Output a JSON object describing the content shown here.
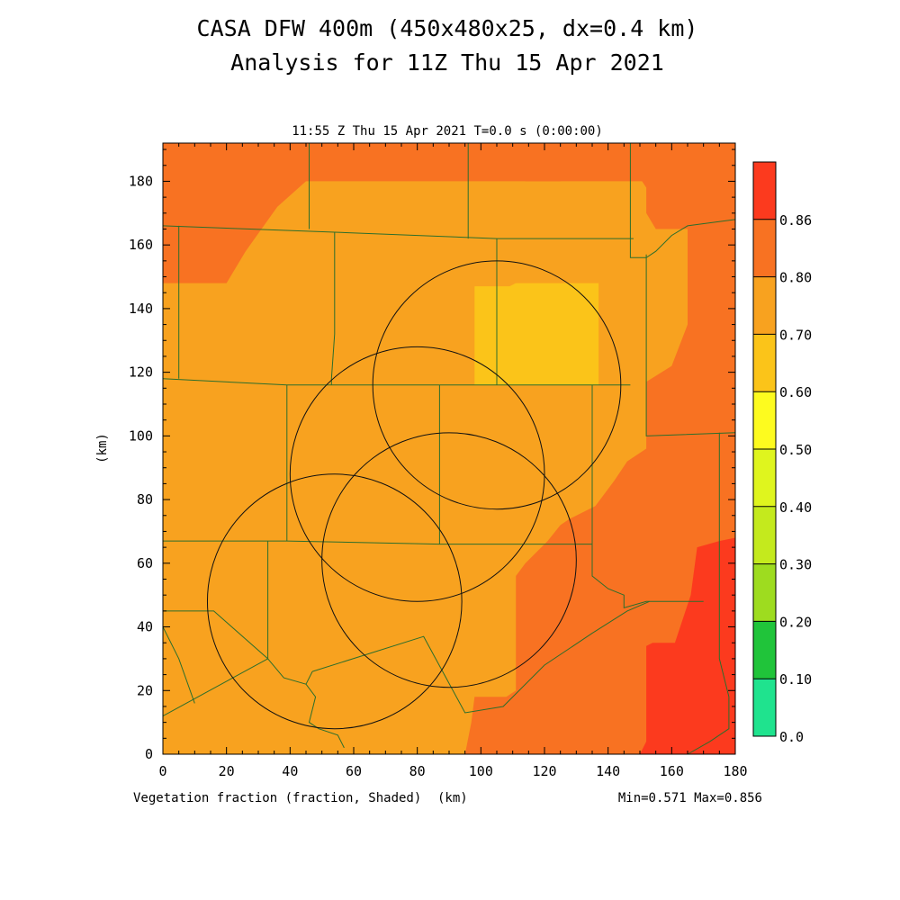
{
  "header": {
    "title_line1": "CASA DFW 400m (450x480x25, dx=0.4 km)",
    "title_line2": "Analysis for 11Z Thu 15 Apr 2021",
    "time_label": "11:55 Z Thu 15 Apr 2021   T=0.0 s (0:00:00)"
  },
  "footer": {
    "field_label": "Vegetation fraction (fraction, Shaded)",
    "x_unit": "(km)",
    "minmax": "Min=0.571 Max=0.856"
  },
  "chart_data": {
    "type": "heatmap",
    "title": "Vegetation fraction (fraction, Shaded)",
    "xlabel": "(km)",
    "ylabel": "(km)",
    "xlim": [
      0,
      180
    ],
    "ylim": [
      0,
      192
    ],
    "x_ticks": [
      "0",
      "20",
      "40",
      "60",
      "80",
      "100",
      "120",
      "140",
      "160",
      "180"
    ],
    "y_ticks": [
      "0",
      "20",
      "40",
      "60",
      "80",
      "100",
      "120",
      "140",
      "160",
      "180"
    ],
    "min": 0.571,
    "max": 0.856,
    "colorbar": {
      "labels": [
        "0.0",
        "0.10",
        "0.20",
        "0.30",
        "0.40",
        "0.50",
        "0.60",
        "0.70",
        "0.80",
        "0.86"
      ],
      "colors": [
        "#1fe38e",
        "#20c43a",
        "#9edc1f",
        "#c4ea1d",
        "#dff51e",
        "#fdfb1f",
        "#fbc419",
        "#f8a21f",
        "#f87222",
        "#fc3a1e"
      ]
    },
    "regions": [
      {
        "level": "0.60-0.70",
        "color": "#f8a21f",
        "polygon": [
          [
            0,
            0
          ],
          [
            180,
            0
          ],
          [
            180,
            192
          ],
          [
            0,
            192
          ]
        ]
      },
      {
        "level": "0.70-0.80",
        "color": "#f87222",
        "polygon": [
          [
            0,
            148
          ],
          [
            20,
            148
          ],
          [
            26,
            158
          ],
          [
            36,
            172
          ],
          [
            45,
            180
          ],
          [
            160,
            180
          ],
          [
            160,
            192
          ],
          [
            0,
            192
          ]
        ]
      },
      {
        "level": "0.70-0.80",
        "color": "#f87222",
        "polygon": [
          [
            112,
            192
          ],
          [
            112,
            182
          ],
          [
            114,
            180
          ],
          [
            125,
            180
          ],
          [
            125,
            192
          ]
        ]
      },
      {
        "level": "0.70-0.80",
        "color": "#f87222",
        "polygon": [
          [
            150,
            192
          ],
          [
            150,
            181
          ],
          [
            152,
            178
          ],
          [
            152,
            170
          ],
          [
            155,
            165
          ],
          [
            165,
            165
          ],
          [
            165,
            135
          ],
          [
            160,
            122
          ],
          [
            152,
            117
          ],
          [
            152,
            96
          ],
          [
            146,
            92
          ],
          [
            142,
            86
          ],
          [
            136,
            78
          ],
          [
            128,
            74
          ],
          [
            125,
            72
          ],
          [
            121,
            67
          ],
          [
            114,
            60
          ],
          [
            111,
            56
          ],
          [
            111,
            20
          ],
          [
            108,
            18
          ],
          [
            98,
            18
          ],
          [
            97,
            10
          ],
          [
            95,
            0
          ],
          [
            180,
            0
          ],
          [
            180,
            192
          ]
        ]
      },
      {
        "level": "0.50-0.60",
        "color": "#fbc419",
        "polygon": [
          [
            98,
            116
          ],
          [
            98,
            147
          ],
          [
            109,
            147
          ],
          [
            111,
            148
          ],
          [
            137,
            148
          ],
          [
            137,
            145
          ],
          [
            137,
            116
          ]
        ]
      },
      {
        "level": "0.80-0.86",
        "color": "#fc3a1e",
        "polygon": [
          [
            150,
            0
          ],
          [
            152,
            4
          ],
          [
            152,
            34
          ],
          [
            154,
            35
          ],
          [
            161,
            35
          ],
          [
            166,
            50
          ],
          [
            168,
            65
          ],
          [
            175,
            67
          ],
          [
            180,
            68
          ],
          [
            180,
            0
          ]
        ]
      }
    ],
    "circles": [
      {
        "cx": 105,
        "cy": 116,
        "r": 39
      },
      {
        "cx": 80,
        "cy": 88,
        "r": 40
      },
      {
        "cx": 90,
        "cy": 61,
        "r": 40
      },
      {
        "cx": 54,
        "cy": 48,
        "r": 40
      }
    ],
    "boundaries": [
      [
        [
          0,
          166
        ],
        [
          54,
          164
        ],
        [
          105,
          162
        ],
        [
          148,
          162
        ]
      ],
      [
        [
          0,
          118
        ],
        [
          39,
          116
        ],
        [
          87,
          116
        ],
        [
          117,
          116
        ],
        [
          147,
          116
        ]
      ],
      [
        [
          0,
          67
        ],
        [
          33,
          67
        ],
        [
          39,
          67
        ],
        [
          87,
          66
        ],
        [
          135,
          66
        ]
      ],
      [
        [
          5,
          166
        ],
        [
          5,
          118
        ]
      ],
      [
        [
          54,
          164
        ],
        [
          54,
          132
        ],
        [
          53,
          118
        ],
        [
          53,
          116
        ]
      ],
      [
        [
          105,
          162
        ],
        [
          105,
          116
        ]
      ],
      [
        [
          39,
          116
        ],
        [
          39,
          67
        ]
      ],
      [
        [
          87,
          116
        ],
        [
          87,
          66
        ]
      ],
      [
        [
          135,
          116
        ],
        [
          135,
          66
        ]
      ],
      [
        [
          46,
          192
        ],
        [
          46,
          165
        ]
      ],
      [
        [
          96,
          192
        ],
        [
          96,
          162
        ]
      ],
      [
        [
          147,
          192
        ],
        [
          147,
          162
        ]
      ],
      [
        [
          147,
          162
        ],
        [
          147,
          156
        ],
        [
          152,
          156
        ],
        [
          155,
          158
        ],
        [
          160,
          163
        ],
        [
          165,
          166
        ],
        [
          180,
          168
        ]
      ],
      [
        [
          152,
          157
        ],
        [
          152,
          100
        ],
        [
          180,
          101
        ]
      ],
      [
        [
          33,
          67
        ],
        [
          33,
          45
        ],
        [
          33,
          30
        ],
        [
          16,
          45
        ],
        [
          0,
          45
        ]
      ],
      [
        [
          0,
          40
        ],
        [
          5,
          30
        ],
        [
          10,
          16
        ]
      ],
      [
        [
          33,
          30
        ],
        [
          38,
          24
        ],
        [
          45,
          22
        ],
        [
          47,
          26
        ]
      ],
      [
        [
          0,
          12
        ],
        [
          33,
          30
        ]
      ],
      [
        [
          47,
          26
        ],
        [
          82,
          37
        ],
        [
          95,
          13
        ],
        [
          107,
          15
        ],
        [
          120,
          28
        ],
        [
          135,
          38
        ],
        [
          146,
          45
        ],
        [
          153,
          48
        ]
      ],
      [
        [
          135,
          66
        ],
        [
          135,
          56
        ],
        [
          140,
          52
        ],
        [
          145,
          50
        ],
        [
          145,
          46
        ],
        [
          152,
          48
        ],
        [
          160,
          48
        ],
        [
          170,
          48
        ]
      ],
      [
        [
          45,
          22
        ],
        [
          48,
          18
        ],
        [
          46,
          10
        ],
        [
          49,
          8
        ],
        [
          55,
          6
        ],
        [
          57,
          2
        ]
      ],
      [
        [
          175,
          101
        ],
        [
          175,
          48
        ],
        [
          175,
          30
        ],
        [
          178,
          18
        ],
        [
          178,
          8
        ],
        [
          172,
          4
        ],
        [
          165,
          0
        ]
      ]
    ]
  }
}
